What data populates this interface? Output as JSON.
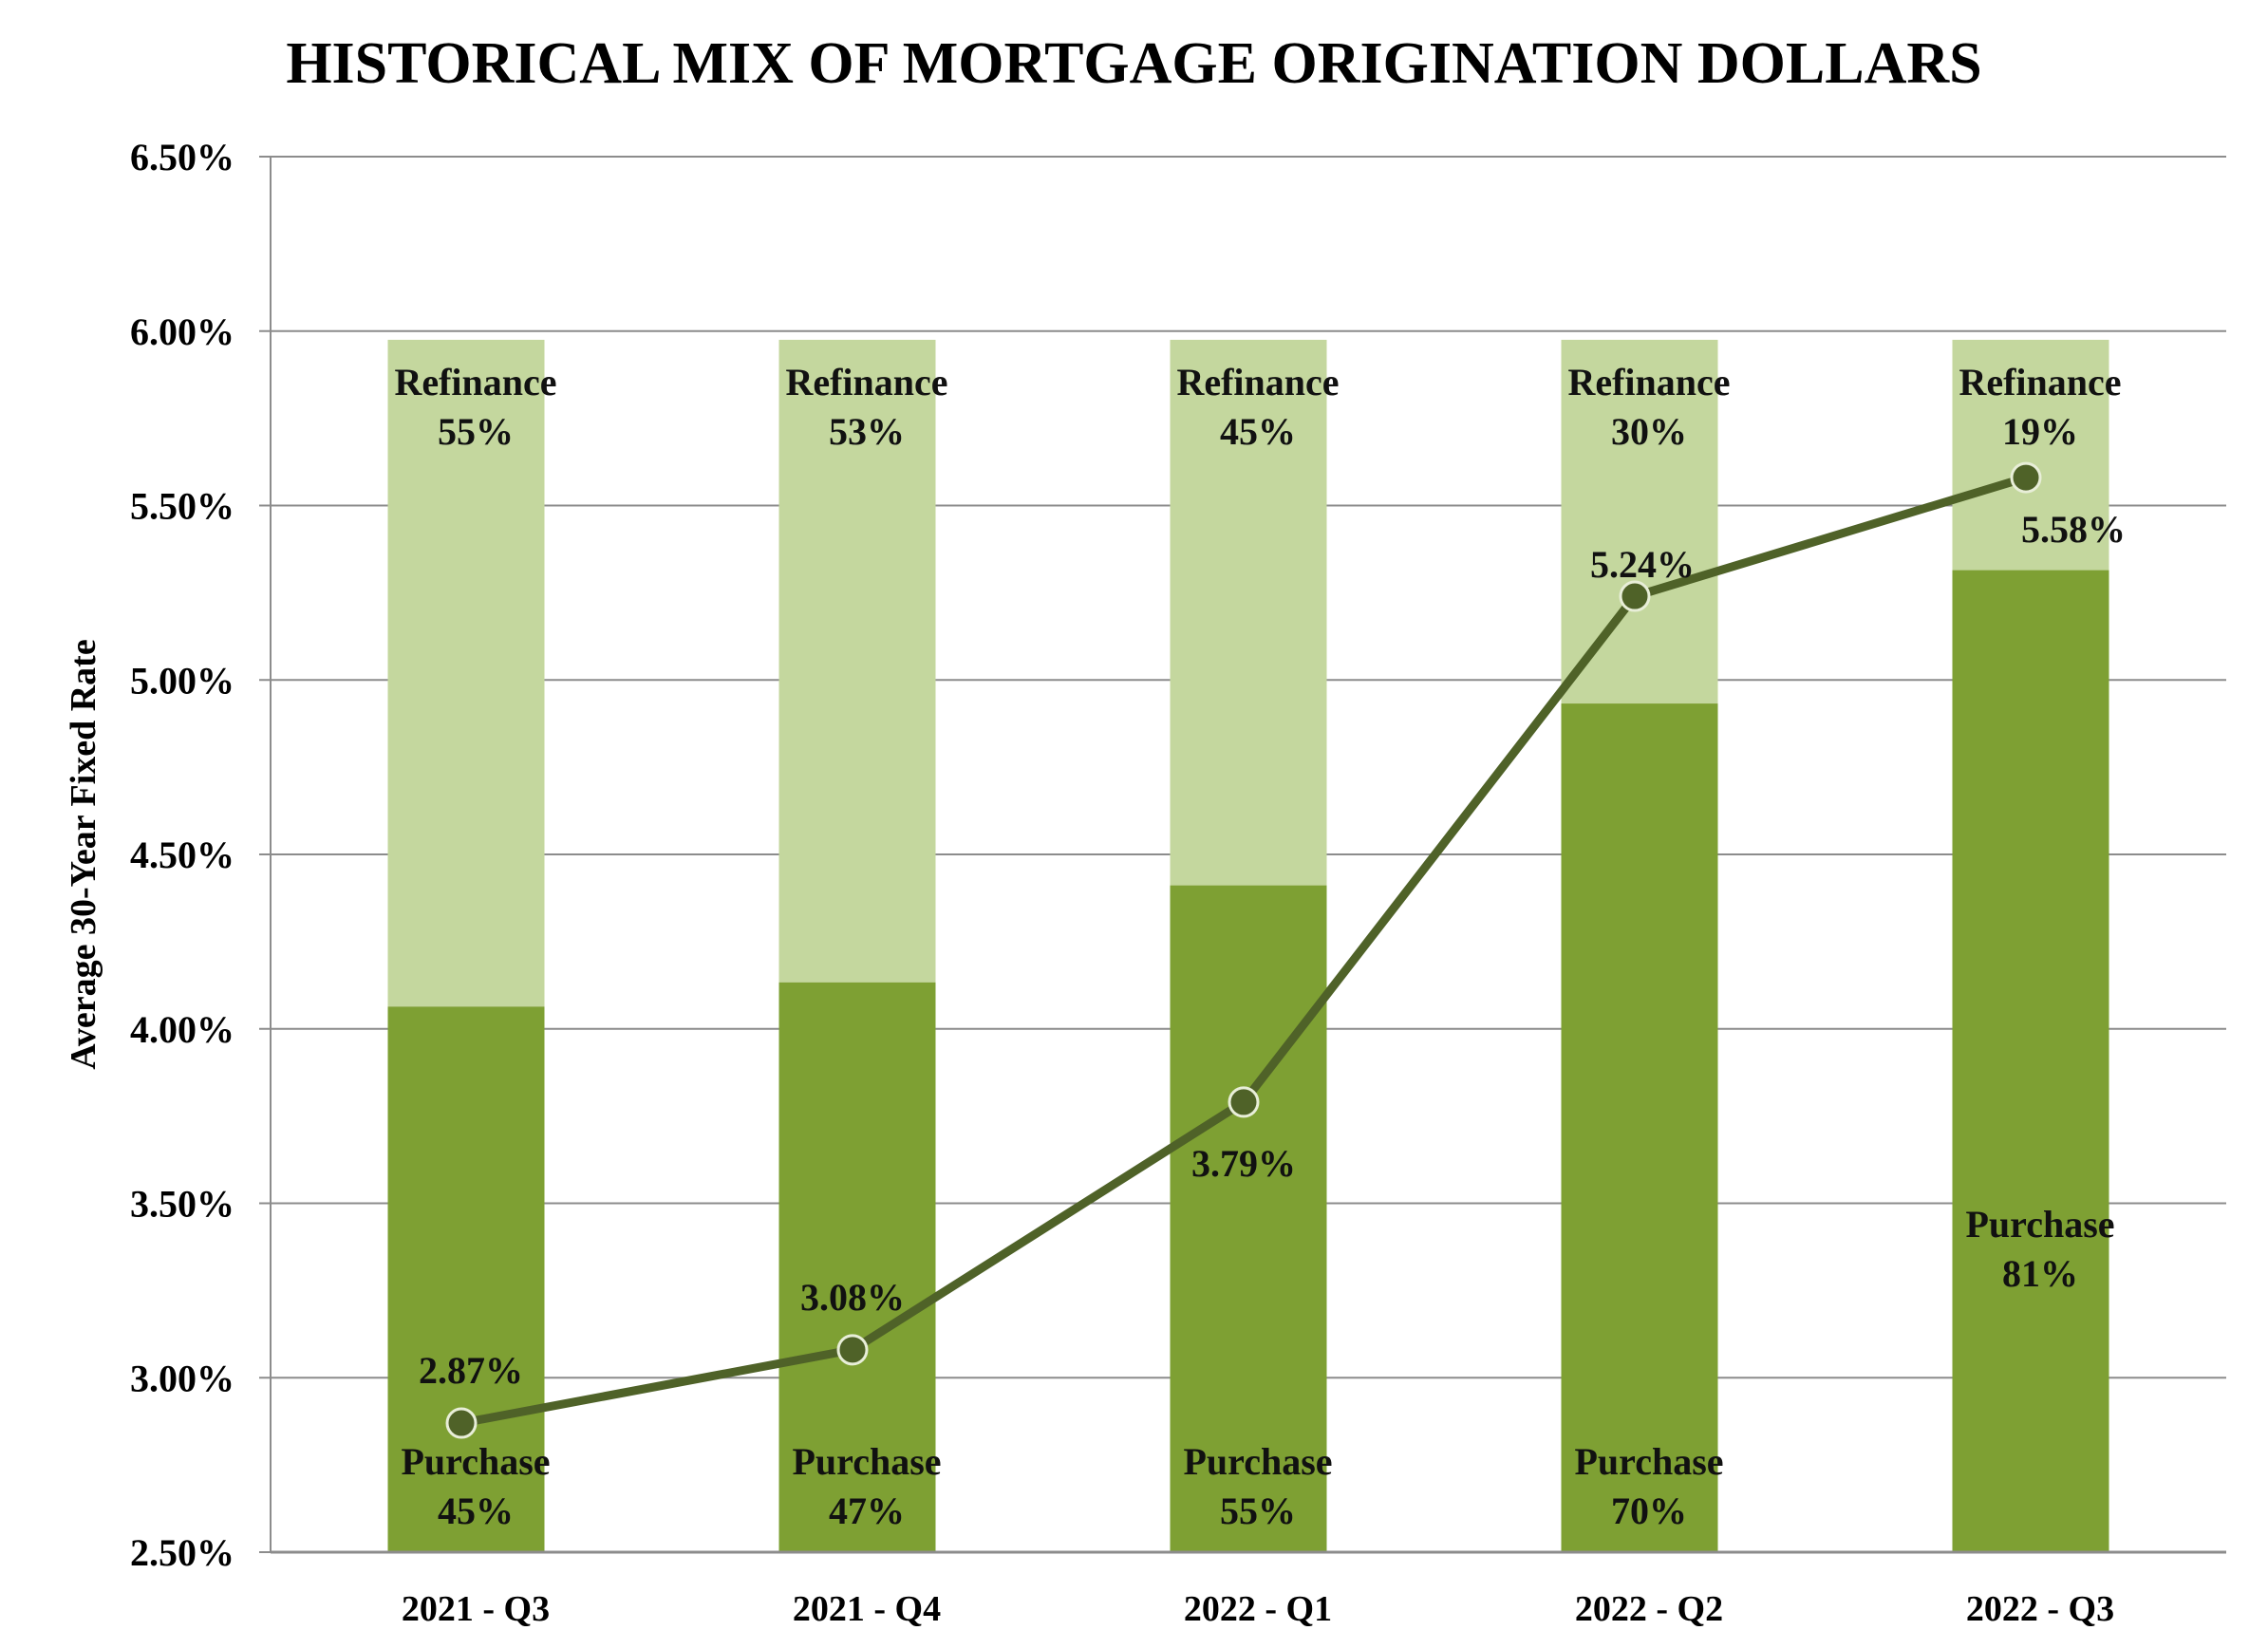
{
  "chart_data": {
    "type": "bar",
    "title": "HISTORICAL MIX OF MORTGAGE ORIGINATION DOLLARS",
    "ylabel": "Average 30-Year Fixed Rate",
    "xlabel": "",
    "ylim": [
      2.5,
      6.5
    ],
    "yticks": [
      "2.50%",
      "3.00%",
      "3.50%",
      "4.00%",
      "4.50%",
      "5.00%",
      "5.50%",
      "6.00%",
      "6.50%"
    ],
    "grid": true,
    "categories": [
      "2021 - Q3",
      "2021 - Q4",
      "2022 - Q1",
      "2022 - Q2",
      "2022 - Q3"
    ],
    "series": [
      {
        "name": "Purchase",
        "kind": "stacked-bar",
        "share_percent": [
          45,
          47,
          55,
          70,
          81
        ],
        "labels": [
          "45%",
          "47%",
          "55%",
          "70%",
          "81%"
        ],
        "color": "#7ea033"
      },
      {
        "name": "Refinance",
        "kind": "stacked-bar",
        "share_percent": [
          55,
          53,
          45,
          30,
          19
        ],
        "labels": [
          "55%",
          "53%",
          "45%",
          "30%",
          "19%"
        ],
        "color": "#c4d79e"
      },
      {
        "name": "Average 30-Year Fixed Rate",
        "kind": "line",
        "values": [
          2.87,
          3.08,
          3.79,
          5.24,
          5.58
        ],
        "labels": [
          "2.87%",
          "3.08%",
          "3.79%",
          "5.24%",
          "5.58%"
        ],
        "color": "#4f6228"
      }
    ],
    "bar_top_value": 5.975
  }
}
